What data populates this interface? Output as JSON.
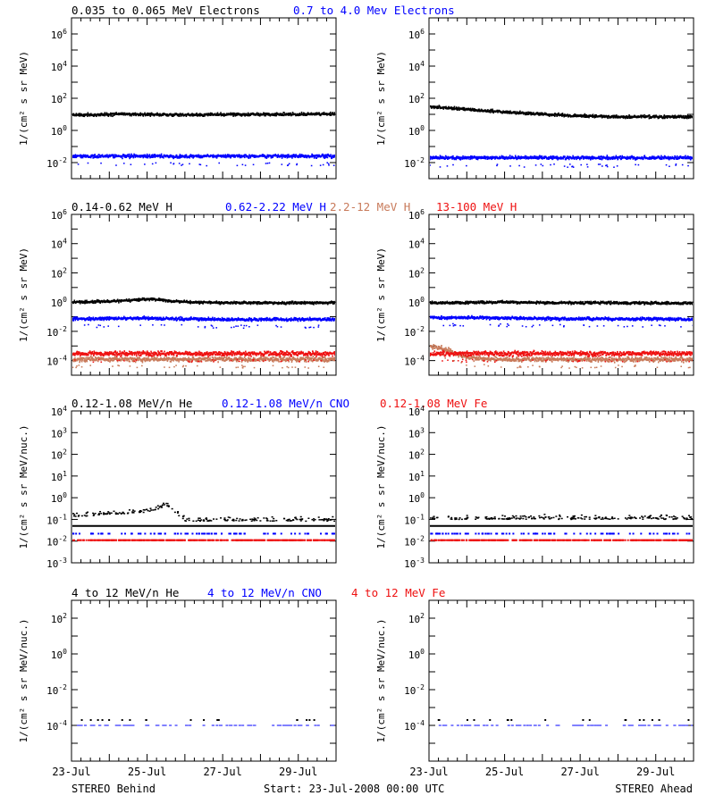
{
  "colors": {
    "black": "#000000",
    "blue": "#0000ff",
    "brown": "#c87a5a",
    "red": "#ee1111"
  },
  "footer": {
    "left": "STEREO Behind",
    "center": "Start: 23-Jul-2008 00:00 UTC",
    "right": "STEREO Ahead"
  },
  "titles": {
    "row1": [
      {
        "text": "0.035 to 0.065 MeV Electrons",
        "color": "black"
      },
      {
        "text": "0.7 to 4.0 Mev Electrons",
        "color": "blue"
      }
    ],
    "row2": [
      {
        "text": "0.14-0.62 MeV H",
        "color": "black"
      },
      {
        "text": "0.62-2.22 MeV H",
        "color": "blue"
      },
      {
        "text": "2.2-12 MeV H",
        "color": "brown"
      },
      {
        "text": "13-100 MeV H",
        "color": "red"
      }
    ],
    "row3": [
      {
        "text": "0.12-1.08 MeV/n He",
        "color": "black"
      },
      {
        "text": "0.12-1.08 MeV/n CNO",
        "color": "blue"
      },
      {
        "text": "0.12-1.08 MeV Fe",
        "color": "red"
      }
    ],
    "row4": [
      {
        "text": "4 to 12 MeV/n He",
        "color": "black"
      },
      {
        "text": "4 to 12 MeV/n CNO",
        "color": "blue"
      },
      {
        "text": "4 to 12 MeV Fe",
        "color": "red"
      }
    ]
  },
  "chart_data": [
    {
      "id": "electrons-behind",
      "type": "scatter",
      "row": 0,
      "col": 0,
      "yscale": "log",
      "ylabel": "1/(cm² s sr MeV)",
      "ylim": [
        0.001,
        10000000
      ],
      "yticks": [
        "10^-2",
        "10^0",
        "10^2",
        "10^4",
        "10^6"
      ],
      "xlim": [
        "2008-07-23",
        "2008-07-30"
      ],
      "xticks": [
        "23-Jul",
        "25-Jul",
        "27-Jul",
        "29-Jul"
      ],
      "series": [
        {
          "name": "0.035 to 0.065 MeV Electrons",
          "color": "black",
          "x": [
            "2008-07-23",
            "2008-07-24",
            "2008-07-25",
            "2008-07-26",
            "2008-07-27",
            "2008-07-28",
            "2008-07-29",
            "2008-07-30"
          ],
          "y": [
            9,
            10,
            10,
            9,
            10,
            10,
            10,
            11
          ]
        },
        {
          "name": "0.7 to 4.0 Mev Electrons",
          "color": "blue",
          "x": [
            "2008-07-23",
            "2008-07-24",
            "2008-07-25",
            "2008-07-26",
            "2008-07-27",
            "2008-07-28",
            "2008-07-29",
            "2008-07-30"
          ],
          "y": [
            0.025,
            0.025,
            0.025,
            0.024,
            0.025,
            0.025,
            0.025,
            0.025
          ]
        }
      ]
    },
    {
      "id": "electrons-ahead",
      "type": "scatter",
      "row": 0,
      "col": 1,
      "yscale": "log",
      "ylabel": "1/(cm² s sr MeV)",
      "ylim": [
        0.001,
        10000000
      ],
      "yticks": [
        "10^-2",
        "10^0",
        "10^2",
        "10^4",
        "10^6"
      ],
      "xlim": [
        "2008-07-23",
        "2008-07-30"
      ],
      "xticks": [
        "23-Jul",
        "25-Jul",
        "27-Jul",
        "29-Jul"
      ],
      "series": [
        {
          "name": "0.035 to 0.065 MeV Electrons",
          "color": "black",
          "x": [
            "2008-07-23",
            "2008-07-24",
            "2008-07-25",
            "2008-07-26",
            "2008-07-27",
            "2008-07-28",
            "2008-07-29",
            "2008-07-30"
          ],
          "y": [
            30,
            20,
            14,
            10,
            8,
            7,
            7,
            7
          ]
        },
        {
          "name": "0.7 to 4.0 Mev Electrons",
          "color": "blue",
          "x": [
            "2008-07-23",
            "2008-07-24",
            "2008-07-25",
            "2008-07-26",
            "2008-07-27",
            "2008-07-28",
            "2008-07-29",
            "2008-07-30"
          ],
          "y": [
            0.02,
            0.02,
            0.02,
            0.02,
            0.02,
            0.02,
            0.02,
            0.02
          ]
        }
      ]
    },
    {
      "id": "protons-behind",
      "type": "scatter",
      "row": 1,
      "col": 0,
      "yscale": "log",
      "ylabel": "1/(cm² s sr MeV)",
      "ylim": [
        1e-05,
        1000000
      ],
      "yticks": [
        "10^-4",
        "10^-2",
        "10^0",
        "10^2",
        "10^4",
        "10^6"
      ],
      "xlim": [
        "2008-07-23",
        "2008-07-30"
      ],
      "xticks": [
        "23-Jul",
        "25-Jul",
        "27-Jul",
        "29-Jul"
      ],
      "series": [
        {
          "name": "0.14-0.62 MeV H",
          "color": "black",
          "x": [
            "2008-07-23",
            "2008-07-24",
            "2008-07-25",
            "2008-07-26",
            "2008-07-27",
            "2008-07-28",
            "2008-07-29",
            "2008-07-30"
          ],
          "y": [
            1.0,
            1.1,
            1.6,
            1.0,
            0.9,
            0.9,
            0.9,
            0.9
          ]
        },
        {
          "name": "0.62-2.22 MeV H",
          "color": "blue",
          "x": [
            "2008-07-23",
            "2008-07-24",
            "2008-07-25",
            "2008-07-26",
            "2008-07-27",
            "2008-07-28",
            "2008-07-29",
            "2008-07-30"
          ],
          "y": [
            0.07,
            0.075,
            0.08,
            0.07,
            0.065,
            0.065,
            0.065,
            0.065
          ]
        },
        {
          "name": "2.2-12 MeV H",
          "color": "brown",
          "x": [
            "2008-07-23",
            "2008-07-24",
            "2008-07-25",
            "2008-07-26",
            "2008-07-27",
            "2008-07-28",
            "2008-07-29",
            "2008-07-30"
          ],
          "y": [
            0.00012,
            0.00012,
            0.00012,
            0.00012,
            0.00012,
            0.00012,
            0.00012,
            0.00012
          ]
        },
        {
          "name": "13-100 MeV H",
          "color": "red",
          "x": [
            "2008-07-23",
            "2008-07-24",
            "2008-07-25",
            "2008-07-26",
            "2008-07-27",
            "2008-07-28",
            "2008-07-29",
            "2008-07-30"
          ],
          "y": [
            0.0003,
            0.0003,
            0.0003,
            0.0003,
            0.0003,
            0.0003,
            0.0003,
            0.0003
          ]
        }
      ]
    },
    {
      "id": "protons-ahead",
      "type": "scatter",
      "row": 1,
      "col": 1,
      "yscale": "log",
      "ylabel": "1/(cm² s sr MeV)",
      "ylim": [
        1e-05,
        1000000
      ],
      "yticks": [
        "10^-4",
        "10^-2",
        "10^0",
        "10^2",
        "10^4",
        "10^6"
      ],
      "xlim": [
        "2008-07-23",
        "2008-07-30"
      ],
      "xticks": [
        "23-Jul",
        "25-Jul",
        "27-Jul",
        "29-Jul"
      ],
      "series": [
        {
          "name": "0.14-0.62 MeV H",
          "color": "black",
          "x": [
            "2008-07-23",
            "2008-07-24",
            "2008-07-25",
            "2008-07-26",
            "2008-07-27",
            "2008-07-28",
            "2008-07-29",
            "2008-07-30"
          ],
          "y": [
            0.9,
            0.9,
            1.0,
            0.9,
            0.9,
            0.9,
            0.85,
            0.85
          ]
        },
        {
          "name": "0.62-2.22 MeV H",
          "color": "blue",
          "x": [
            "2008-07-23",
            "2008-07-24",
            "2008-07-25",
            "2008-07-26",
            "2008-07-27",
            "2008-07-28",
            "2008-07-29",
            "2008-07-30"
          ],
          "y": [
            0.09,
            0.085,
            0.08,
            0.075,
            0.07,
            0.07,
            0.07,
            0.065
          ]
        },
        {
          "name": "2.2-12 MeV H",
          "color": "brown",
          "x": [
            "2008-07-23",
            "2008-07-23.5",
            "2008-07-24",
            "2008-07-25",
            "2008-07-26",
            "2008-07-27",
            "2008-07-28",
            "2008-07-30"
          ],
          "y": [
            0.001,
            0.0005,
            0.00015,
            0.00012,
            0.00012,
            0.00012,
            0.00012,
            0.00012
          ]
        },
        {
          "name": "13-100 MeV H",
          "color": "red",
          "x": [
            "2008-07-23",
            "2008-07-24",
            "2008-07-25",
            "2008-07-26",
            "2008-07-27",
            "2008-07-28",
            "2008-07-29",
            "2008-07-30"
          ],
          "y": [
            0.0003,
            0.0003,
            0.0003,
            0.0003,
            0.0003,
            0.0003,
            0.0003,
            0.0003
          ]
        }
      ]
    },
    {
      "id": "heavy-low-behind",
      "type": "scatter",
      "row": 2,
      "col": 0,
      "yscale": "log",
      "ylabel": "1/(cm² s sr MeV/nuc.)",
      "ylim": [
        0.001,
        10000
      ],
      "yticks": [
        "10^-3",
        "10^-2",
        "10^-1",
        "10^0",
        "10^1",
        "10^2",
        "10^3",
        "10^4"
      ],
      "xlim": [
        "2008-07-23",
        "2008-07-30"
      ],
      "xticks": [
        "23-Jul",
        "25-Jul",
        "27-Jul",
        "29-Jul"
      ],
      "series": [
        {
          "name": "0.12-1.08 MeV/n He",
          "color": "black",
          "x": [
            "2008-07-23",
            "2008-07-24",
            "2008-07-25",
            "2008-07-25.5",
            "2008-07-26",
            "2008-07-27",
            "2008-07-28",
            "2008-07-30"
          ],
          "y": [
            0.15,
            0.2,
            0.25,
            0.5,
            0.1,
            0.1,
            0.1,
            0.1
          ]
        },
        {
          "name": "0.12-1.08 MeV/n CNO",
          "color": "blue",
          "x": [
            "2008-07-23",
            "2008-07-30"
          ],
          "y": [
            0.022,
            0.022
          ]
        },
        {
          "name": "0.12-1.08 MeV Fe",
          "color": "red",
          "x": [
            "2008-07-23",
            "2008-07-30"
          ],
          "y": [
            0.011,
            0.011
          ]
        }
      ]
    },
    {
      "id": "heavy-low-ahead",
      "type": "scatter",
      "row": 2,
      "col": 1,
      "yscale": "log",
      "ylabel": "1/(cm² s sr MeV/nuc.)",
      "ylim": [
        0.001,
        10000
      ],
      "yticks": [
        "10^-3",
        "10^-2",
        "10^-1",
        "10^0",
        "10^1",
        "10^2",
        "10^3",
        "10^4"
      ],
      "xlim": [
        "2008-07-23",
        "2008-07-30"
      ],
      "xticks": [
        "23-Jul",
        "25-Jul",
        "27-Jul",
        "29-Jul"
      ],
      "series": [
        {
          "name": "0.12-1.08 MeV/n He",
          "color": "black",
          "x": [
            "2008-07-23",
            "2008-07-30"
          ],
          "y": [
            0.12,
            0.12
          ]
        },
        {
          "name": "0.12-1.08 MeV/n CNO",
          "color": "blue",
          "x": [
            "2008-07-23",
            "2008-07-30"
          ],
          "y": [
            0.022,
            0.022
          ]
        },
        {
          "name": "0.12-1.08 MeV Fe",
          "color": "red",
          "x": [
            "2008-07-23",
            "2008-07-30"
          ],
          "y": [
            0.011,
            0.011
          ]
        }
      ]
    },
    {
      "id": "heavy-high-behind",
      "type": "scatter",
      "row": 3,
      "col": 0,
      "yscale": "log",
      "ylabel": "1/(cm² s sr MeV/nuc.)",
      "ylim": [
        1e-06,
        1000
      ],
      "yticks": [
        "10^-4",
        "10^-2",
        "10^0",
        "10^2"
      ],
      "xlim": [
        "2008-07-23",
        "2008-07-30"
      ],
      "xticks": [
        "23-Jul",
        "25-Jul",
        "27-Jul",
        "29-Jul"
      ],
      "series": [
        {
          "name": "4 to 12 MeV/n He",
          "color": "black",
          "x": [
            "2008-07-23",
            "2008-07-30"
          ],
          "y": [
            0.0002,
            0.0002
          ]
        },
        {
          "name": "4 to 12 MeV/n CNO",
          "color": "blue",
          "x": [
            "2008-07-23",
            "2008-07-30"
          ],
          "y": [
            0.0001,
            0.0001
          ]
        },
        {
          "name": "4 to 12 MeV Fe",
          "color": "red",
          "x": [],
          "y": []
        }
      ]
    },
    {
      "id": "heavy-high-ahead",
      "type": "scatter",
      "row": 3,
      "col": 1,
      "yscale": "log",
      "ylabel": "1/(cm² s sr MeV/nuc.)",
      "ylim": [
        1e-06,
        1000
      ],
      "yticks": [
        "10^-4",
        "10^-2",
        "10^0",
        "10^2"
      ],
      "xlim": [
        "2008-07-23",
        "2008-07-30"
      ],
      "xticks": [
        "23-Jul",
        "25-Jul",
        "27-Jul",
        "29-Jul"
      ],
      "series": [
        {
          "name": "4 to 12 MeV/n He",
          "color": "black",
          "x": [
            "2008-07-23",
            "2008-07-30"
          ],
          "y": [
            0.0002,
            0.0002
          ]
        },
        {
          "name": "4 to 12 MeV/n CNO",
          "color": "blue",
          "x": [
            "2008-07-23",
            "2008-07-30"
          ],
          "y": [
            0.0001,
            0.0001
          ]
        },
        {
          "name": "4 to 12 MeV Fe",
          "color": "red",
          "x": [],
          "y": []
        }
      ]
    }
  ]
}
